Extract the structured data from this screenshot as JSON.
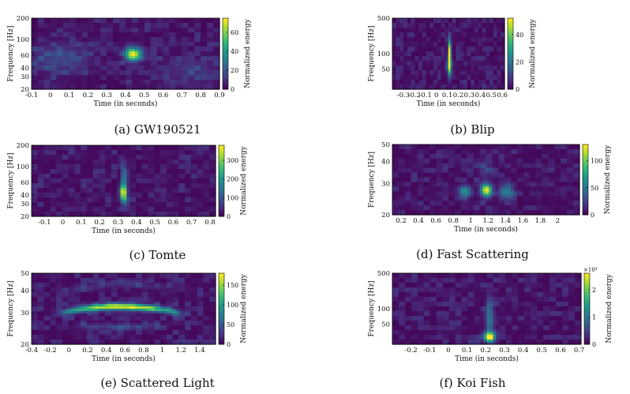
{
  "figure": {
    "panels": [
      {
        "id": "a",
        "caption": "(a) GW190521"
      },
      {
        "id": "b",
        "caption": "(b) Blip"
      },
      {
        "id": "c",
        "caption": "(c) Tomte"
      },
      {
        "id": "d",
        "caption": "(d) Fast Scattering"
      },
      {
        "id": "e",
        "caption": "(e) Scattered Light"
      },
      {
        "id": "f",
        "caption": "(f) Koi Fish"
      }
    ]
  },
  "colors": {
    "low": "#440154",
    "mid": "#21918c",
    "high": "#fde725"
  },
  "chart_data": [
    {
      "type": "heatmap",
      "panel": "a",
      "xlabel": "Time (in seconds)",
      "ylabel": "Frequency [Hz]",
      "colorbar_label": "Normalized energy",
      "xlim": [
        -0.1,
        0.9
      ],
      "xticks": [
        "-0.1",
        "0",
        "0.1",
        "0.2",
        "0.3",
        "0.4",
        "0.5",
        "0.6",
        "0.7",
        "0.8",
        "0.9"
      ],
      "xtick_values": [
        -0.1,
        0,
        0.1,
        0.2,
        0.3,
        0.4,
        0.5,
        0.6,
        0.7,
        0.8,
        0.9
      ],
      "ylim": [
        20,
        200
      ],
      "yscale": "log",
      "yticks": [
        "20",
        "30",
        "40",
        "60",
        "100",
        "200"
      ],
      "ytick_values": [
        20,
        30,
        40,
        60,
        100,
        200
      ],
      "colorbar_ticks": [
        "0",
        "20",
        "40",
        "60"
      ],
      "colorbar_tick_values": [
        0,
        20,
        40,
        60
      ],
      "colorbar_max": 75,
      "features": [
        {
          "t": 0.44,
          "f": 62,
          "width_s": 0.04,
          "height_dec": 0.09,
          "energy": 72
        },
        {
          "t": 0.05,
          "f": 55,
          "width_s": 0.15,
          "height_dec": 0.2,
          "energy": 14
        },
        {
          "t": 0.75,
          "f": 35,
          "width_s": 0.2,
          "height_dec": 0.2,
          "energy": 8
        }
      ]
    },
    {
      "type": "heatmap",
      "panel": "b",
      "xlabel": "Time (in seconds)",
      "ylabel": "Frequency [Hz]",
      "colorbar_label": "Normalized energy",
      "xlim": [
        -0.4,
        0.62
      ],
      "xticks": [
        "-0.3",
        "-0.2",
        "-0.1",
        "0",
        "0.1",
        "0.2",
        "0.3",
        "0.4",
        "0.5",
        "0.6"
      ],
      "xtick_values": [
        -0.3,
        -0.2,
        -0.1,
        0,
        0.1,
        0.2,
        0.3,
        0.4,
        0.5,
        0.6
      ],
      "ylim": [
        20,
        500
      ],
      "yscale": "log",
      "yticks": [
        "50",
        "100",
        "500"
      ],
      "ytick_values": [
        50,
        100,
        500
      ],
      "colorbar_ticks": [
        "0",
        "20",
        "40"
      ],
      "colorbar_tick_values": [
        0,
        20,
        40
      ],
      "colorbar_max": 52,
      "features": [
        {
          "t": 0.12,
          "f": 95,
          "width_s": 0.012,
          "height_dec": 0.3,
          "energy": 48
        },
        {
          "t": 0.12,
          "f": 60,
          "width_s": 0.02,
          "height_dec": 0.2,
          "energy": 30
        }
      ]
    },
    {
      "type": "heatmap",
      "panel": "c",
      "xlabel": "Time (in seconds)",
      "ylabel": "Frequency [Hz]",
      "colorbar_label": "Normalized energy",
      "xlim": [
        -0.17,
        0.83
      ],
      "xticks": [
        "-0.1",
        "0",
        "0.1",
        "0.2",
        "0.3",
        "0.4",
        "0.5",
        "0.6",
        "0.7",
        "0.8"
      ],
      "xtick_values": [
        -0.1,
        0,
        0.1,
        0.2,
        0.3,
        0.4,
        0.5,
        0.6,
        0.7,
        0.8
      ],
      "ylim": [
        20,
        200
      ],
      "yscale": "log",
      "yticks": [
        "20",
        "30",
        "40",
        "60",
        "100",
        "200"
      ],
      "ytick_values": [
        20,
        30,
        40,
        60,
        100,
        200
      ],
      "colorbar_ticks": [
        "0",
        "100",
        "200",
        "300"
      ],
      "colorbar_tick_values": [
        0,
        100,
        200,
        300
      ],
      "colorbar_max": 380,
      "features": [
        {
          "t": 0.33,
          "f": 42,
          "width_s": 0.018,
          "height_dec": 0.12,
          "energy": 360
        },
        {
          "t": 0.33,
          "f": 70,
          "width_s": 0.012,
          "height_dec": 0.2,
          "energy": 150
        }
      ]
    },
    {
      "type": "heatmap",
      "panel": "d",
      "xlabel": "Time (in seconds)",
      "ylabel": "Frequency [Hz]",
      "colorbar_label": "Normalized energy",
      "xlim": [
        0.1,
        2.25
      ],
      "xticks": [
        "0.2",
        "0.4",
        "0.6",
        "0.8",
        "1",
        "1.2",
        "1.4",
        "1.6",
        "1.8",
        "2"
      ],
      "xtick_values": [
        0.2,
        0.4,
        0.6,
        0.8,
        1,
        1.2,
        1.4,
        1.6,
        1.8,
        2
      ],
      "ylim": [
        20,
        50
      ],
      "yscale": "log",
      "yticks": [
        "20",
        "30",
        "40",
        "50"
      ],
      "ytick_values": [
        20,
        30,
        40,
        50
      ],
      "colorbar_ticks": [
        "0",
        "50",
        "100"
      ],
      "colorbar_tick_values": [
        0,
        50,
        100
      ],
      "colorbar_max": 130,
      "features": [
        {
          "t": 1.18,
          "f": 27.5,
          "width_s": 0.06,
          "height_dec": 0.035,
          "energy": 125
        },
        {
          "t": 0.93,
          "f": 27,
          "width_s": 0.07,
          "height_dec": 0.035,
          "energy": 60
        },
        {
          "t": 1.42,
          "f": 27,
          "width_s": 0.07,
          "height_dec": 0.035,
          "energy": 55
        },
        {
          "t": 1.18,
          "f": 36,
          "width_s": 0.09,
          "height_dec": 0.05,
          "energy": 18
        }
      ]
    },
    {
      "type": "heatmap",
      "panel": "e",
      "xlabel": "Time (in seconds)",
      "ylabel": "Frequency [Hz]",
      "colorbar_label": "Normalized energy",
      "xlim": [
        -0.4,
        1.57
      ],
      "xticks": [
        "-0.4",
        "-0.2",
        "0",
        "0.2",
        "0.4",
        "0.6",
        "0.8",
        "1",
        "1.2",
        "1.4"
      ],
      "xtick_values": [
        -0.4,
        -0.2,
        0,
        0.2,
        0.4,
        0.6,
        0.8,
        1,
        1.2,
        1.4
      ],
      "ylim": [
        20,
        50
      ],
      "yscale": "log",
      "yticks": [
        "20",
        "30",
        "40",
        "50"
      ],
      "ytick_values": [
        20,
        30,
        40,
        50
      ],
      "colorbar_ticks": [
        "0",
        "50",
        "100",
        "150"
      ],
      "colorbar_tick_values": [
        0,
        50,
        100,
        150
      ],
      "colorbar_max": 180,
      "arch": {
        "t_start": -0.05,
        "t_end": 1.2,
        "t_peak": 0.55,
        "f_peak": 32.5,
        "f_edge": 30,
        "energy": 170
      },
      "arch2": {
        "t_start": 0.0,
        "t_end": 1.1,
        "t_peak": 0.55,
        "f_peak": 43.5,
        "f_edge": 40,
        "energy": 22
      },
      "arch3": {
        "t_start": 0.1,
        "t_end": 1.0,
        "t_peak": 0.55,
        "f_peak": 25,
        "f_edge": 25.5,
        "energy": 30
      }
    },
    {
      "type": "heatmap",
      "panel": "f",
      "xlabel": "Time (in seconds)",
      "ylabel": "Frequency [Hz]",
      "colorbar_label": "Normalized energy",
      "xlim": [
        -0.3,
        0.71
      ],
      "xticks": [
        "-0.2",
        "-0.1",
        "0",
        "0.1",
        "0.2",
        "0.3",
        "0.4",
        "0.5",
        "0.6",
        "0.7"
      ],
      "xtick_values": [
        -0.2,
        -0.1,
        0,
        0.1,
        0.2,
        0.3,
        0.4,
        0.5,
        0.6,
        0.7
      ],
      "ylim": [
        20,
        500
      ],
      "yscale": "log",
      "yticks": [
        "50",
        "100",
        "500"
      ],
      "ytick_values": [
        50,
        100,
        500
      ],
      "colorbar_ticks": [
        "0",
        "1",
        "2"
      ],
      "colorbar_tick_values": [
        0,
        1,
        2
      ],
      "colorbar_max": 2.6,
      "colorbar_multiplier": "×10⁴",
      "features": [
        {
          "t": 0.22,
          "f": 28,
          "width_s": 0.03,
          "height_dec": 0.1,
          "energy": 2.5
        },
        {
          "t": 0.22,
          "f": 70,
          "width_s": 0.02,
          "height_dec": 0.35,
          "energy": 1.0
        }
      ]
    }
  ]
}
